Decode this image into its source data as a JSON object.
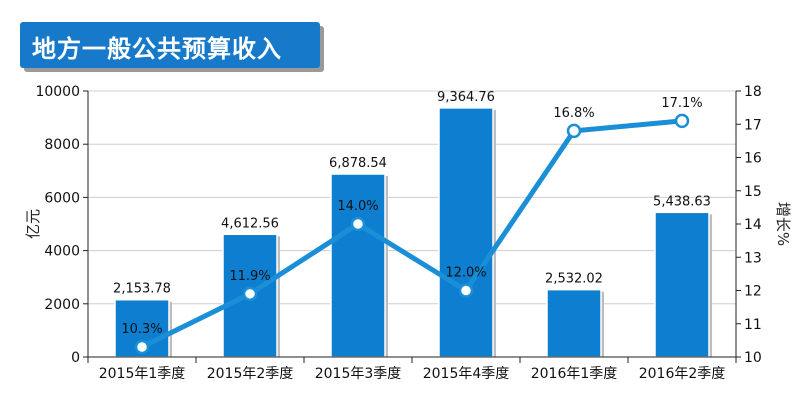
{
  "chart_data": {
    "type": "bar",
    "title": "地方一般公共预算收入",
    "categories": [
      "2015年1季度",
      "2015年2季度",
      "2015年3季度",
      "2015年4季度",
      "2016年1季度",
      "2016年2季度"
    ],
    "series": [
      {
        "name": "",
        "type": "bar",
        "axis": "left",
        "values": [
          2153.78,
          4612.56,
          6878.54,
          9364.76,
          2532.02,
          5438.63
        ],
        "labels": [
          "2,153.78",
          "4,612.56",
          "6,878.54",
          "9,364.76",
          "2,532.02",
          "5,438.63"
        ]
      },
      {
        "name": "",
        "type": "line",
        "axis": "right",
        "values": [
          10.3,
          11.9,
          14.0,
          12.0,
          16.8,
          17.1
        ],
        "labels": [
          "10.3%",
          "11.9%",
          "14.0%",
          "12.0%",
          "16.8%",
          "17.1%"
        ]
      }
    ],
    "ylabel": "亿元",
    "y2label": "增长%",
    "ylim": [
      0,
      10000
    ],
    "y2lim": [
      10,
      18
    ],
    "yticks": [
      "0",
      "2000",
      "4000",
      "6000",
      "8000",
      "10000"
    ],
    "y2ticks": [
      "10",
      "11",
      "12",
      "13",
      "14",
      "15",
      "16",
      "17",
      "18"
    ],
    "grid": true,
    "colors": {
      "bar": "#0e7fd0",
      "line": "#1a8fd8",
      "banner": "#1779c9"
    }
  }
}
